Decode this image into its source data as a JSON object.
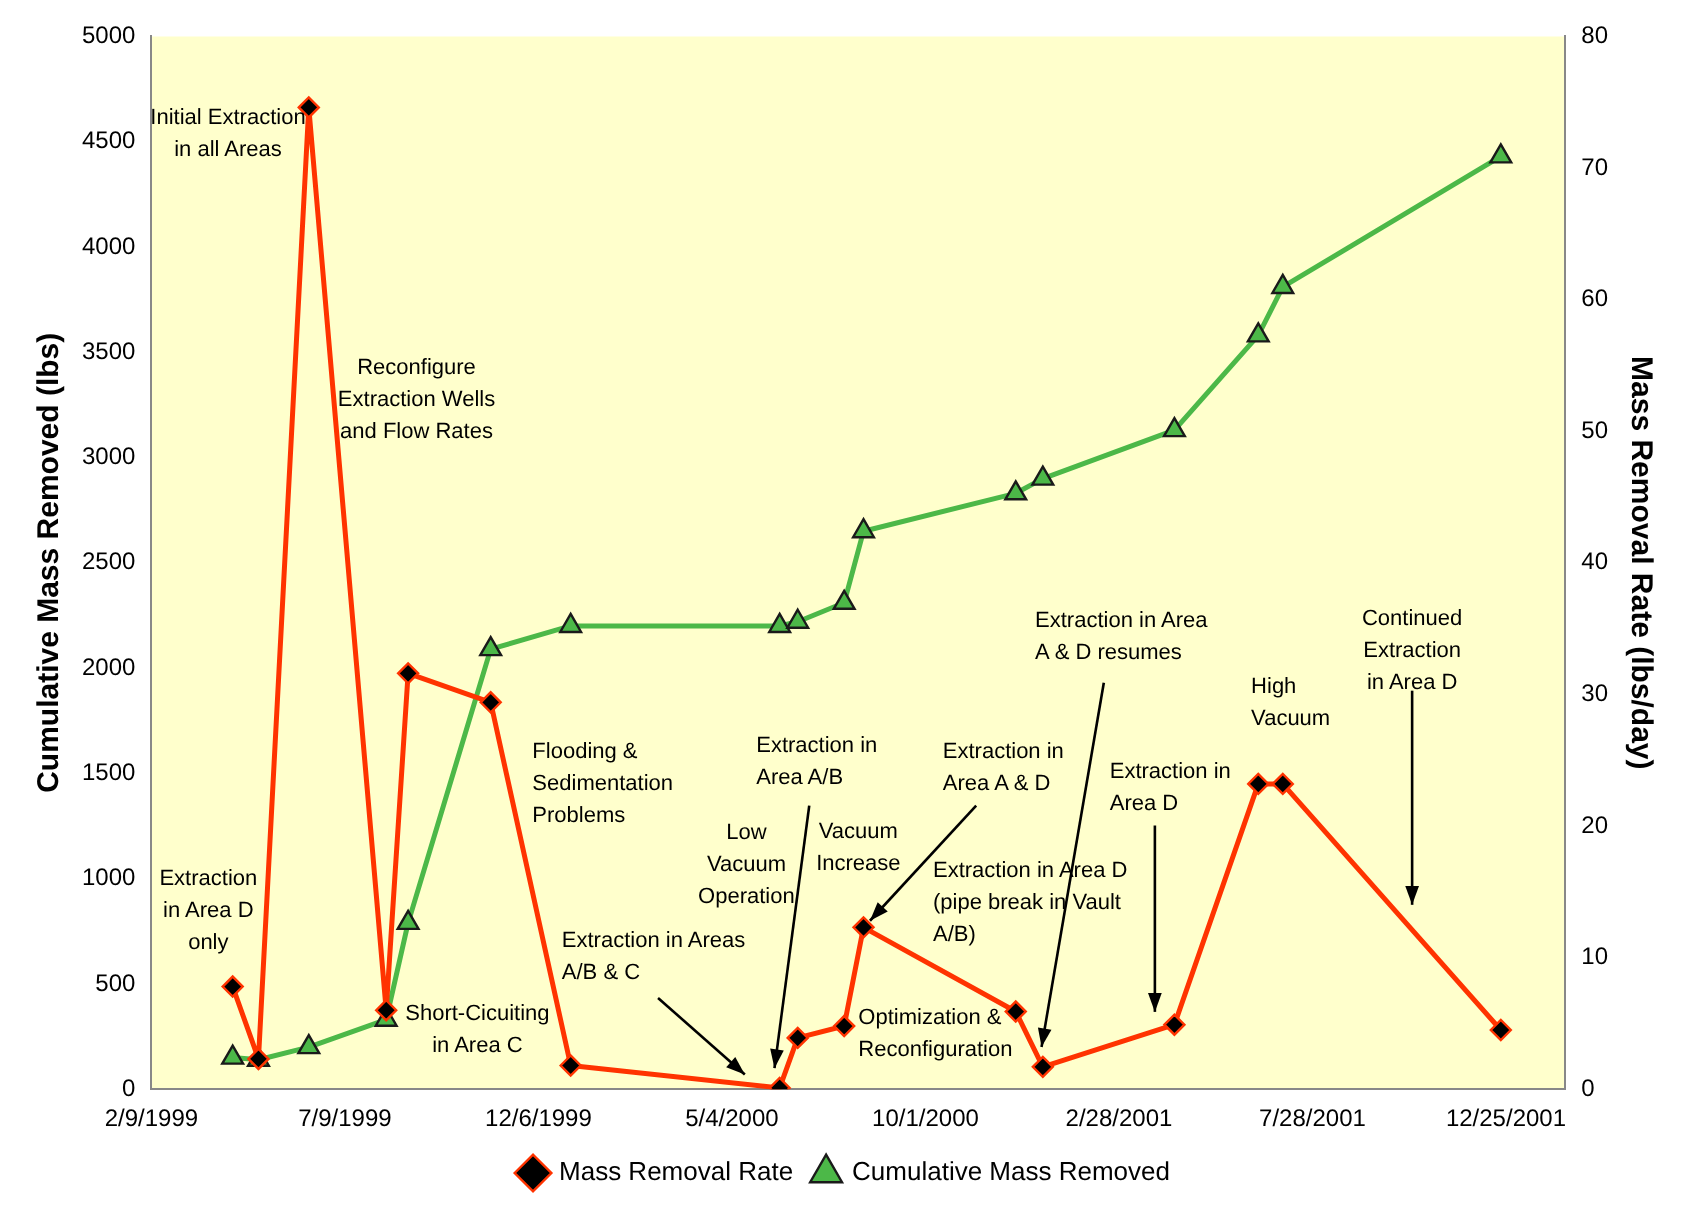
{
  "chart_data": {
    "type": "line",
    "ylabel": "Cumulative Mass Removed (lbs)",
    "y2label": "Mass Removal Rate (lbs/day)",
    "x": [
      "1999-04-13",
      "1999-05-03",
      "1999-06-11",
      "1999-08-10",
      "1999-08-27",
      "1999-10-30",
      "1999-12-31",
      "2000-06-10",
      "2000-06-24",
      "2000-07-30",
      "2000-08-14",
      "2000-12-10",
      "2000-12-31",
      "2001-04-12",
      "2001-06-16",
      "2001-07-05",
      "2001-12-21"
    ],
    "series": [
      {
        "name": "Cumulative Mass Removed",
        "color": "#4cb848",
        "marker": "triangle",
        "values": [
          150,
          140,
          200,
          330,
          790,
          2090,
          2200,
          2200,
          2220,
          2310,
          2650,
          2830,
          2900,
          3130,
          3580,
          3810,
          4430
        ]
      },
      {
        "name": "Mass Removal Rate",
        "color": "#ff3300",
        "marker": "diamond",
        "axis": "y2",
        "values": [
          7.8,
          2.3,
          74.6,
          6.0,
          31.6,
          29.4,
          1.8,
          0.1,
          3.9,
          4.8,
          12.3,
          5.9,
          1.7,
          4.9,
          23.2,
          23.2,
          4.5
        ]
      }
    ],
    "xlim": [
      "1999-02-09",
      "2002-02-09"
    ],
    "xticks": [
      {
        "value": "1999-02-09",
        "label": "2/9/1999"
      },
      {
        "value": "1999-07-09",
        "label": "7/9/1999"
      },
      {
        "value": "1999-12-06",
        "label": "12/6/1999"
      },
      {
        "value": "2000-05-04",
        "label": "5/4/2000"
      },
      {
        "value": "2000-10-01",
        "label": "10/1/2000"
      },
      {
        "value": "2001-02-28",
        "label": "2/28/2001"
      },
      {
        "value": "2001-07-28",
        "label": "7/28/2001"
      },
      {
        "value": "2001-12-25",
        "label": "12/25/2001"
      }
    ],
    "ylim": [
      0,
      5000
    ],
    "yticks": [
      0,
      500,
      1000,
      1500,
      2000,
      2500,
      3000,
      3500,
      4000,
      4500,
      5000
    ],
    "y2lim": [
      0,
      80
    ],
    "y2ticks": [
      0,
      10,
      20,
      30,
      40,
      50,
      60,
      70,
      80
    ],
    "grid": false,
    "legend": "bottom",
    "annotations": [
      "Initial Extraction\nin all Areas",
      "Reconfigure\nExtraction Wells\nand Flow Rates",
      "Extraction\nin Area D\nonly",
      "Short-Cicuiting\nin Area C",
      "Flooding &\nSedimentation\nProblems",
      {
        "text": "Extraction in Areas\nA/B & C",
        "x": "2000-05-14",
        "y": 70
      },
      "Low\nVacuum\nOperation",
      {
        "text": "Extraction in\nArea A/B",
        "x": "2000-06-06",
        "y": 100
      },
      "Vacuum\nIncrease",
      {
        "text": "Extraction in\nArea A & D",
        "x": "2000-08-19",
        "y": 800
      },
      "Extraction in Area D\n(pipe break in Vault\nA/B)",
      "Optimization &\nReconfiguration",
      {
        "text": "Extraction in Area\nA & D resumes",
        "x": "2000-12-30",
        "y": 200
      },
      "Extraction in\nArea D",
      "High\nVacuum",
      "Continued\nExtraction\nin Area D"
    ]
  }
}
